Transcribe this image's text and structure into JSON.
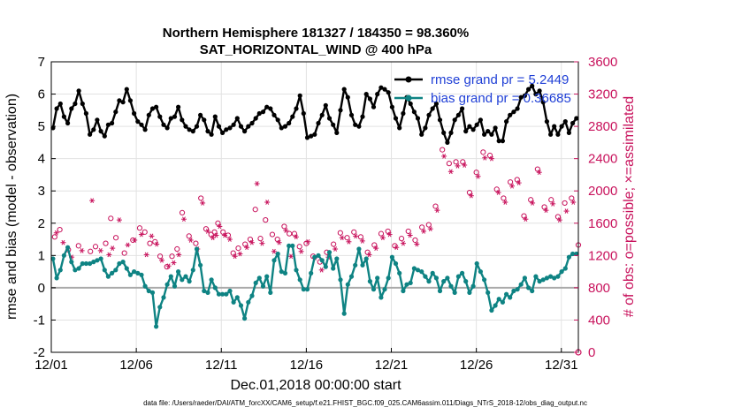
{
  "chart_data": {
    "type": "line",
    "title": "Northern Hemisphere 181327 / 184350 = 98.360%",
    "subtitle": "SAT_HORIZONTAL_WIND @ 400 hPa",
    "xlabel": "Dec.01,2018 00:00:00 start",
    "ylabel": "rmse and bias (model - observation)",
    "y2label": "# of obs: o=possible; ×=assimilated",
    "x_ticks": [
      "12/01",
      "12/06",
      "12/11",
      "12/16",
      "12/21",
      "12/26",
      "12/31"
    ],
    "y_ticks": [
      "-2",
      "-1",
      "0",
      "1",
      "2",
      "3",
      "4",
      "5",
      "6",
      "7"
    ],
    "y2_ticks": [
      "0",
      "400",
      "800",
      "1200",
      "1600",
      "2000",
      "2400",
      "2800",
      "3200",
      "3600"
    ],
    "ylim": [
      -2,
      7
    ],
    "y2lim": [
      0,
      3600
    ],
    "grid": true,
    "legend_position": "top-right",
    "footnote": "data file: /Users/raeder/DAI/ATM_forcXX/CAM6_setup/f.e21.FHIST_BGC.f09_025.CAM6assim.011/Diags_NTrS_2018-12/obs_diag_output.nc",
    "colors": {
      "rmse": "#000000",
      "bias": "#0e8383",
      "obs": "#c8125c",
      "legend_text": "#1f3fd6",
      "zero_line": "#aaaaaa"
    },
    "series": [
      {
        "name": "rmse grand pr = 5.2449",
        "axis": "left",
        "values": [
          4.95,
          5.55,
          5.7,
          5.3,
          5.1,
          5.55,
          5.7,
          6.1,
          5.7,
          5.4,
          4.75,
          4.9,
          5.2,
          4.85,
          4.7,
          5.05,
          5.1,
          5.45,
          5.8,
          5.75,
          6.15,
          5.8,
          5.4,
          5.15,
          5.05,
          4.9,
          5.35,
          5.55,
          5.6,
          5.3,
          5.05,
          4.95,
          5.25,
          5.3,
          5.6,
          5.2,
          5.0,
          4.9,
          4.85,
          5.0,
          5.35,
          5.2,
          4.85,
          4.75,
          5.3,
          5.0,
          4.8,
          4.9,
          4.95,
          5.05,
          5.25,
          5.0,
          4.85,
          5.0,
          5.1,
          5.25,
          5.4,
          5.45,
          5.6,
          5.55,
          5.35,
          5.2,
          4.95,
          5.0,
          5.1,
          5.3,
          5.55,
          5.95,
          5.4,
          4.65,
          4.7,
          4.75,
          5.1,
          5.35,
          5.65,
          5.25,
          5.05,
          4.8,
          5.5,
          6.15,
          5.9,
          5.35,
          5.05,
          5.0,
          5.3,
          6.0,
          5.85,
          5.6,
          6.0,
          6.2,
          6.15,
          6.05,
          5.6,
          5.25,
          4.95,
          5.4,
          5.9,
          5.7,
          5.45,
          5.25,
          4.75,
          4.95,
          5.35,
          5.55,
          5.7,
          5.2,
          4.8,
          4.5,
          4.8,
          5.2,
          5.35,
          5.55,
          4.85,
          5.0,
          4.9,
          5.05,
          5.2,
          4.75,
          4.85,
          4.75,
          4.95,
          4.55,
          4.55,
          5.15,
          5.35,
          5.45,
          5.55,
          5.9,
          5.95,
          6.15,
          6.25,
          6.0,
          6.1,
          5.75,
          5.15,
          4.75,
          5.0,
          4.75,
          5.0,
          5.15,
          4.8,
          5.1,
          5.25
        ]
      },
      {
        "name": "bias grand pr = 0.36685",
        "axis": "left",
        "values": [
          0.9,
          0.3,
          0.55,
          1.0,
          1.25,
          0.8,
          0.55,
          0.6,
          0.75,
          0.75,
          0.75,
          0.8,
          0.85,
          0.9,
          0.55,
          0.35,
          0.45,
          0.55,
          0.75,
          0.8,
          0.6,
          0.4,
          0.5,
          0.45,
          0.4,
          0.05,
          -0.1,
          -0.15,
          -1.2,
          -0.6,
          -0.3,
          0.1,
          0.35,
          0.05,
          0.5,
          0.25,
          0.35,
          0.2,
          0.55,
          1.2,
          0.7,
          -0.1,
          -0.15,
          0.25,
          0.0,
          -0.2,
          -0.2,
          -0.2,
          -0.1,
          -0.45,
          -0.3,
          -0.55,
          -0.95,
          -0.45,
          -0.25,
          0.15,
          0.3,
          0.05,
          0.35,
          -0.15,
          0.85,
          1.05,
          0.5,
          0.45,
          1.3,
          1.3,
          0.55,
          0.25,
          -0.05,
          -0.05,
          0.45,
          0.95,
          1.0,
          0.85,
          0.65,
          1.1,
          0.6,
          0.9,
          0.25,
          -0.8,
          0.1,
          0.35,
          0.7,
          1.2,
          0.7,
          0.9,
          0.2,
          -0.05,
          0.3,
          -0.3,
          -0.05,
          0.3,
          0.95,
          0.75,
          0.45,
          -0.1,
          0.1,
          0.15,
          0.6,
          0.55,
          0.5,
          0.35,
          0.2,
          0.45,
          0.3,
          -0.1,
          0.2,
          0.3,
          0.05,
          -0.15,
          0.35,
          0.45,
          0.2,
          -0.15,
          0.05,
          0.75,
          0.5,
          0.25,
          -0.15,
          -0.7,
          -0.55,
          -0.35,
          -0.45,
          -0.2,
          -0.3,
          -0.1,
          -0.05,
          0.1,
          0.3,
          0.0,
          -0.1,
          0.35,
          0.2,
          0.25,
          0.3,
          0.35,
          0.3,
          0.35,
          0.5,
          0.6,
          0.95,
          1.05,
          1.05
        ]
      },
      {
        "name": "obs possible",
        "axis": "right",
        "marker": "o",
        "x": [
          0.2,
          0.5,
          1.0,
          1.6,
          2.3,
          2.6,
          3.2,
          3.5,
          3.8,
          4.3,
          4.8,
          5.2,
          5.5,
          5.8,
          6.1,
          6.4,
          6.8,
          7.1,
          7.4,
          7.7,
          8.1,
          8.5,
          8.8,
          9.1,
          9.4,
          9.6,
          9.8,
          10.1,
          10.4,
          10.7,
          11.0,
          11.4,
          11.7,
          12.0,
          12.3,
          12.6,
          13.0,
          13.3,
          13.7,
          14.0,
          14.3,
          14.6,
          15.0,
          15.4,
          15.8,
          16.2,
          16.6,
          17.0,
          17.4,
          17.8,
          18.2,
          18.6,
          19.0,
          19.4,
          19.8,
          20.2,
          20.6,
          21.0,
          21.4,
          21.8,
          22.2,
          22.6,
          23.0,
          23.4,
          23.8,
          24.2,
          24.6,
          25.0,
          25.4,
          25.8,
          26.2,
          26.6,
          27.0,
          27.4,
          27.8,
          28.2,
          28.6,
          29.0,
          29.4,
          29.8,
          30.2,
          30.6,
          31.0
        ],
        "values": [
          1430,
          1520,
          1270,
          1320,
          1250,
          1310,
          1350,
          1660,
          1420,
          1230,
          1390,
          1540,
          1490,
          1350,
          1370,
          1190,
          1060,
          1190,
          1280,
          1730,
          1440,
          1350,
          1910,
          1530,
          1460,
          1490,
          1600,
          1490,
          1450,
          1230,
          1290,
          1340,
          1400,
          1770,
          1410,
          1640,
          1460,
          1400,
          1560,
          1470,
          1470,
          1310,
          1350,
          1190,
          1120,
          1240,
          1340,
          1480,
          1420,
          1490,
          1430,
          1240,
          1330,
          1470,
          1500,
          1320,
          1410,
          1500,
          1390,
          1550,
          1580,
          1810,
          2510,
          2340,
          2360,
          2360,
          1980,
          2230,
          2480,
          2440,
          2020,
          1910,
          2110,
          2140,
          1690,
          1890,
          2270,
          1800,
          1890,
          1680,
          1850,
          1910,
          1330
        ]
      },
      {
        "name": "obs assimilated",
        "axis": "right",
        "marker": "*",
        "x": [
          0.3,
          0.7,
          1.2,
          1.8,
          2.4,
          2.9,
          3.4,
          3.6,
          4.0,
          4.5,
          4.9,
          5.3,
          5.6,
          5.9,
          6.2,
          6.5,
          6.9,
          7.2,
          7.5,
          7.8,
          8.2,
          8.6,
          8.9,
          9.2,
          9.5,
          9.7,
          9.9,
          10.2,
          10.5,
          10.8,
          11.1,
          11.5,
          11.8,
          12.1,
          12.4,
          12.7,
          13.1,
          13.4,
          13.8,
          14.1,
          14.4,
          14.7,
          15.1,
          15.5,
          15.9,
          16.3,
          16.7,
          17.1,
          17.5,
          17.9,
          18.3,
          18.7,
          19.1,
          19.5,
          19.9,
          20.3,
          20.7,
          21.1,
          21.5,
          21.9,
          22.3,
          22.7,
          23.1,
          23.5,
          23.9,
          24.3,
          24.7,
          25.1,
          25.5,
          25.9,
          26.3,
          26.7,
          27.1,
          27.5,
          27.9,
          28.3,
          28.7,
          29.1,
          29.5,
          29.9,
          30.3,
          30.7
        ],
        "values": [
          1480,
          1360,
          1180,
          1260,
          1880,
          1260,
          1210,
          1290,
          1640,
          1330,
          1390,
          1460,
          1210,
          1440,
          1340,
          1140,
          1070,
          1110,
          1210,
          1650,
          1390,
          1280,
          1850,
          1500,
          1420,
          1450,
          1560,
          1450,
          1400,
          1190,
          1220,
          1300,
          1360,
          2090,
          1350,
          1860,
          1250,
          1360,
          1510,
          1190,
          1430,
          1250,
          1370,
          1170,
          1020,
          1180,
          1280,
          1420,
          1370,
          1440,
          1380,
          1210,
          1290,
          1420,
          1460,
          1300,
          1350,
          1450,
          1340,
          1500,
          1530,
          1760,
          2430,
          2240,
          2310,
          2320,
          1940,
          2180,
          2410,
          2400,
          1980,
          1860,
          2060,
          2100,
          1650,
          1850,
          2230,
          1760,
          1840,
          1640,
          1750,
          1860
        ]
      }
    ]
  }
}
